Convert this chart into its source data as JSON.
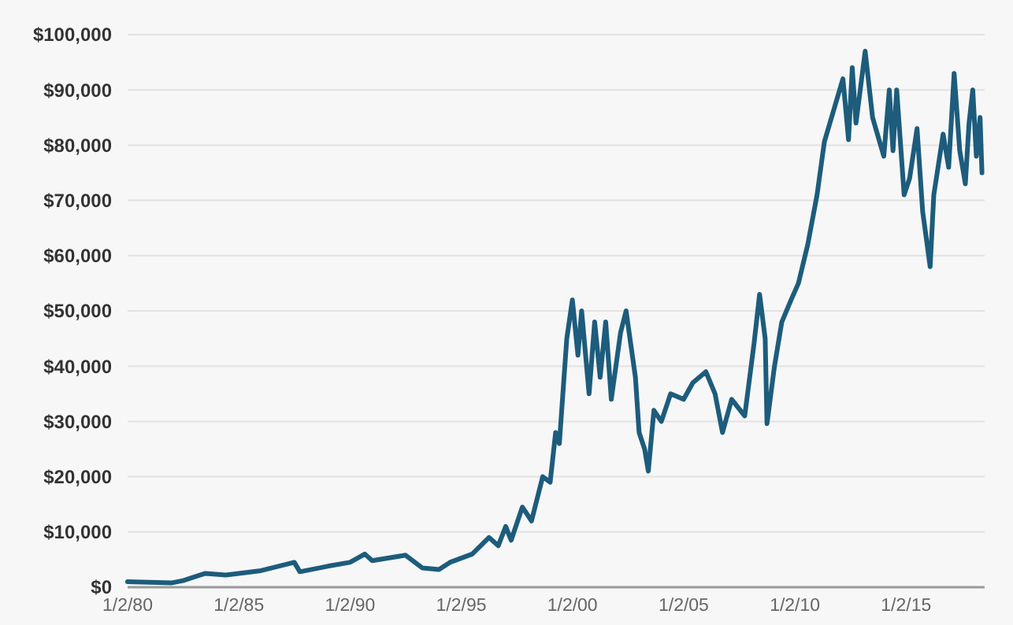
{
  "chart_data": {
    "type": "line",
    "xlim": [
      "1980-01-02",
      "2018-07-15"
    ],
    "ylim": [
      0,
      100000
    ],
    "xticks": [
      {
        "value": "1980-01-02",
        "label": "1/2/80"
      },
      {
        "value": "1985-01-02",
        "label": "1/2/85"
      },
      {
        "value": "1990-01-02",
        "label": "1/2/90"
      },
      {
        "value": "1995-01-02",
        "label": "1/2/95"
      },
      {
        "value": "2000-01-02",
        "label": "1/2/00"
      },
      {
        "value": "2005-01-02",
        "label": "1/2/05"
      },
      {
        "value": "2010-01-02",
        "label": "1/2/10"
      },
      {
        "value": "2015-01-02",
        "label": "1/2/15"
      }
    ],
    "yticks": [
      {
        "value": 0,
        "label": "$0"
      },
      {
        "value": 10000,
        "label": "$10,000"
      },
      {
        "value": 20000,
        "label": "$20,000"
      },
      {
        "value": 30000,
        "label": "$30,000"
      },
      {
        "value": 40000,
        "label": "$40,000"
      },
      {
        "value": 50000,
        "label": "$50,000"
      },
      {
        "value": 60000,
        "label": "$60,000"
      },
      {
        "value": 70000,
        "label": "$70,000"
      },
      {
        "value": 80000,
        "label": "$80,000"
      },
      {
        "value": 90000,
        "label": "$90,000"
      },
      {
        "value": 100000,
        "label": "$100,000"
      }
    ],
    "grid": "y",
    "marker": "none",
    "line_style": "solid",
    "series": [
      {
        "color": "#1d5c7c",
        "x": [
          "1980-01-02",
          "1981-01",
          "1982-01",
          "1982-07",
          "1983-07",
          "1984-06",
          "1985-01",
          "1986-01",
          "1987-07",
          "1987-10",
          "1989-01",
          "1990-01",
          "1990-09",
          "1991-01",
          "1992-07",
          "1993-04",
          "1994-01",
          "1994-07",
          "1995-07",
          "1996-04",
          "1996-09",
          "1997-01",
          "1997-04",
          "1997-10",
          "1998-03",
          "1998-09",
          "1999-01",
          "1999-04",
          "1999-06",
          "1999-10",
          "2000-01",
          "2000-04",
          "2000-06",
          "2000-10",
          "2001-01",
          "2001-04",
          "2001-07",
          "2001-10",
          "2002-03",
          "2002-06",
          "2002-11",
          "2003-01",
          "2003-04",
          "2003-06",
          "2003-09",
          "2004-01",
          "2004-06",
          "2005-01",
          "2005-06",
          "2006-01",
          "2006-06",
          "2006-10",
          "2007-03",
          "2007-10",
          "2008-03",
          "2008-06",
          "2008-09",
          "2008-10",
          "2009-02",
          "2009-06",
          "2009-11",
          "2010-03",
          "2010-08",
          "2011-01",
          "2011-05",
          "2012-03",
          "2012-06",
          "2012-08",
          "2012-10",
          "2013-03",
          "2013-07",
          "2014-01",
          "2014-04",
          "2014-06",
          "2014-08",
          "2014-12",
          "2015-03",
          "2015-07",
          "2015-10",
          "2016-02",
          "2016-04",
          "2016-09",
          "2016-12",
          "2017-03",
          "2017-06",
          "2017-09",
          "2017-11",
          "2018-01",
          "2018-03",
          "2018-05",
          "2018-06"
        ],
        "values": [
          1000,
          900,
          800,
          1200,
          2500,
          2200,
          2500,
          3000,
          4500,
          2800,
          3800,
          4500,
          6000,
          4800,
          5800,
          3500,
          3200,
          4500,
          6000,
          9000,
          7500,
          11000,
          8500,
          14500,
          12000,
          20000,
          19000,
          28000,
          26000,
          45000,
          52000,
          42000,
          50000,
          35000,
          48000,
          38000,
          48000,
          34000,
          46000,
          50000,
          38000,
          28000,
          25000,
          21000,
          32000,
          30000,
          35000,
          34000,
          37000,
          39000,
          35000,
          28000,
          34000,
          31000,
          44000,
          53000,
          45000,
          29600,
          40000,
          48000,
          52000,
          55000,
          62000,
          71000,
          80600,
          92000,
          81000,
          94000,
          84000,
          97000,
          85000,
          78000,
          90000,
          79000,
          90000,
          71000,
          74000,
          83000,
          68000,
          58000,
          71000,
          82000,
          76000,
          93000,
          79000,
          73000,
          84000,
          90000,
          78000,
          85000,
          75000
        ]
      }
    ]
  }
}
